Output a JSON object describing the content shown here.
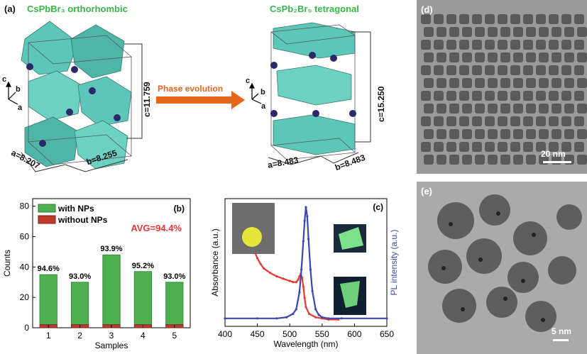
{
  "panel_a": {
    "label": "(a)",
    "left_title": "CsPbBr₃ orthorhombic",
    "right_title": "CsPb₂Br₅ tetragonal",
    "arrow_label": "Phase evolution",
    "left_c": "c=11.759",
    "left_a": "a=8.207",
    "left_b": "b=8.255",
    "right_c": "c=15.250",
    "right_a": "a=8.483",
    "right_b": "b=8.483",
    "axis_c": "c",
    "axis_b": "b",
    "axis_a": "a",
    "colors": {
      "octahedra": "#5cc6b8",
      "atoms": "#2a2a6a",
      "title": "#39b54a",
      "arrow": "#e8651a"
    }
  },
  "panel_b": {
    "label": "(b)",
    "avg_label": "AVG=94.4%"
  },
  "panel_c": {
    "label": "(c)"
  },
  "panel_d": {
    "label": "(d)",
    "scale": "20 nm"
  },
  "panel_e": {
    "label": "(e)",
    "scale": "5 nm"
  },
  "chart_data": [
    {
      "type": "bar",
      "title": "",
      "xlabel": "Samples",
      "ylabel": "Counts",
      "categories": [
        "1",
        "2",
        "3",
        "4",
        "5"
      ],
      "ylim": [
        0,
        85
      ],
      "yticks": [
        0,
        20,
        40,
        60,
        80
      ],
      "series": [
        {
          "name": "with NPs",
          "values": [
            33,
            28,
            46,
            35,
            28
          ],
          "color": "#4caf50"
        },
        {
          "name": "without NPs",
          "values": [
            2,
            2,
            2,
            2,
            2
          ],
          "color": "#c0392b"
        }
      ],
      "data_labels": [
        "94.6%",
        "93.0%",
        "93.9%",
        "95.2%",
        "93.0%"
      ],
      "legend": "top-left",
      "annotation": "AVG=94.4%"
    },
    {
      "type": "line",
      "title": "",
      "xlabel": "Wavelength (nm)",
      "ylabel_left": "Absorbance (a.u.)",
      "ylabel_right": "PL intensity (a.u.)",
      "xlim": [
        400,
        650
      ],
      "xticks": [
        400,
        450,
        500,
        550,
        600,
        650
      ],
      "series": [
        {
          "name": "Absorbance",
          "color": "#e53935",
          "x": [
            440,
            445,
            450,
            455,
            460,
            470,
            480,
            490,
            500,
            505,
            510,
            513,
            515,
            517,
            519,
            521,
            523,
            525,
            530,
            540,
            550,
            560,
            575
          ],
          "y": [
            0.7,
            0.62,
            0.55,
            0.5,
            0.46,
            0.42,
            0.39,
            0.37,
            0.35,
            0.34,
            0.34,
            0.36,
            0.39,
            0.41,
            0.38,
            0.3,
            0.2,
            0.12,
            0.06,
            0.03,
            0.02,
            0.01,
            0.01
          ]
        },
        {
          "name": "PL intensity",
          "color": "#3949ab",
          "x": [
            400,
            450,
            480,
            495,
            505,
            510,
            515,
            518,
            521,
            523,
            525,
            527,
            529,
            532,
            535,
            540,
            545,
            550,
            560,
            580,
            650
          ],
          "y": [
            0.02,
            0.02,
            0.02,
            0.03,
            0.06,
            0.1,
            0.25,
            0.45,
            0.7,
            0.88,
            1.0,
            0.92,
            0.72,
            0.45,
            0.26,
            0.1,
            0.05,
            0.03,
            0.02,
            0.02,
            0.02
          ]
        }
      ]
    }
  ]
}
